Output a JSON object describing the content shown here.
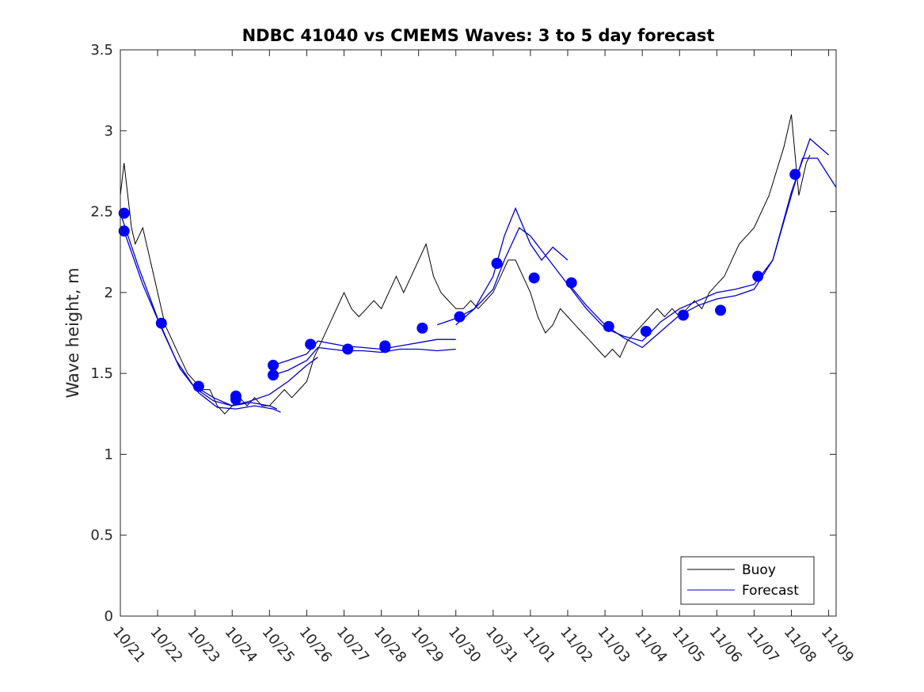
{
  "chart_data": {
    "type": "line",
    "title": "NDBC 41040 vs CMEMS Waves: 3 to 5 day forecast",
    "xlabel": "",
    "ylabel": "Wave height, m",
    "x_tick_labels": [
      "10/21",
      "10/22",
      "10/23",
      "10/24",
      "10/25",
      "10/26",
      "10/27",
      "10/28",
      "10/29",
      "10/30",
      "10/31",
      "11/01",
      "11/02",
      "11/03",
      "11/04",
      "11/05",
      "11/06",
      "11/07",
      "11/08",
      "11/09"
    ],
    "xlim_days": [
      0,
      19.2
    ],
    "ylim": [
      0,
      3.5
    ],
    "y_ticks": [
      0,
      0.5,
      1,
      1.5,
      2,
      2.5,
      3,
      3.5
    ],
    "y_tick_labels": [
      "0",
      "0.5",
      "1",
      "1.5",
      "2",
      "2.5",
      "3",
      "3.5"
    ],
    "legend": {
      "position": "bottom-right",
      "entries": [
        {
          "label": "Buoy",
          "color": "#000000"
        },
        {
          "label": "Forecast",
          "color": "#0000cc"
        }
      ]
    },
    "series": [
      {
        "name": "Buoy",
        "color": "#000000",
        "x_days": [
          0.0,
          0.1,
          0.2,
          0.3,
          0.4,
          0.6,
          0.8,
          1.0,
          1.2,
          1.4,
          1.6,
          1.8,
          2.0,
          2.2,
          2.4,
          2.6,
          2.8,
          3.0,
          3.2,
          3.4,
          3.6,
          3.8,
          4.0,
          4.2,
          4.4,
          4.6,
          4.8,
          5.0,
          5.2,
          5.4,
          5.6,
          5.8,
          6.0,
          6.2,
          6.4,
          6.6,
          6.8,
          7.0,
          7.2,
          7.4,
          7.6,
          7.8,
          8.0,
          8.2,
          8.4,
          8.6,
          8.8,
          9.0,
          9.2,
          9.4,
          9.6,
          9.8,
          10.0,
          10.2,
          10.4,
          10.6,
          10.8,
          11.0,
          11.2,
          11.4,
          11.6,
          11.8,
          12.0,
          12.2,
          12.4,
          12.6,
          12.8,
          13.0,
          13.2,
          13.4,
          13.6,
          13.8,
          14.0,
          14.2,
          14.4,
          14.6,
          14.8,
          15.0,
          15.2,
          15.4,
          15.6,
          15.8,
          16.0,
          16.2,
          16.4,
          16.6,
          16.8,
          17.0,
          17.2,
          17.4,
          17.6,
          17.8,
          18.0,
          18.2,
          18.4,
          18.5
        ],
        "values": [
          2.6,
          2.8,
          2.6,
          2.4,
          2.3,
          2.4,
          2.2,
          2.0,
          1.8,
          1.7,
          1.6,
          1.5,
          1.45,
          1.4,
          1.4,
          1.3,
          1.25,
          1.3,
          1.35,
          1.3,
          1.35,
          1.3,
          1.3,
          1.35,
          1.4,
          1.35,
          1.4,
          1.45,
          1.6,
          1.7,
          1.8,
          1.9,
          2.0,
          1.9,
          1.85,
          1.9,
          1.95,
          1.9,
          2.0,
          2.1,
          2.0,
          2.1,
          2.2,
          2.3,
          2.1,
          2.0,
          1.95,
          1.9,
          1.9,
          1.95,
          1.9,
          1.95,
          2.0,
          2.1,
          2.2,
          2.2,
          2.1,
          2.0,
          1.85,
          1.75,
          1.8,
          1.9,
          1.85,
          1.8,
          1.75,
          1.7,
          1.65,
          1.6,
          1.65,
          1.6,
          1.7,
          1.75,
          1.8,
          1.85,
          1.9,
          1.85,
          1.9,
          1.85,
          1.9,
          1.95,
          1.9,
          2.0,
          2.05,
          2.1,
          2.2,
          2.3,
          2.35,
          2.4,
          2.5,
          2.6,
          2.75,
          2.9,
          3.1,
          2.6,
          2.8,
          2.85
        ]
      },
      {
        "name": "Forecast",
        "color": "#0000cc",
        "segments": [
          {
            "x_days": [
              0.0,
              0.5,
              1.0,
              1.5,
              2.0,
              2.5,
              3.0,
              3.5,
              4.0,
              4.2
            ],
            "values": [
              2.49,
              2.15,
              1.84,
              1.58,
              1.41,
              1.33,
              1.3,
              1.32,
              1.3,
              1.28
            ]
          },
          {
            "x_days": [
              0.1,
              0.6,
              1.1,
              1.6,
              2.1,
              2.6,
              3.1,
              3.6,
              4.1,
              4.3
            ],
            "values": [
              2.38,
              2.05,
              1.78,
              1.53,
              1.38,
              1.29,
              1.28,
              1.3,
              1.28,
              1.26
            ]
          },
          {
            "x_days": [
              2.0,
              2.5,
              3.0,
              3.5,
              4.0,
              4.5,
              5.0,
              5.3
            ],
            "values": [
              1.42,
              1.35,
              1.3,
              1.33,
              1.37,
              1.45,
              1.55,
              1.6
            ]
          },
          {
            "x_days": [
              4.1,
              4.5,
              5.0,
              5.3,
              6.0,
              6.5,
              7.0,
              7.5,
              8.0,
              8.5,
              9.0
            ],
            "values": [
              1.55,
              1.58,
              1.62,
              1.7,
              1.67,
              1.66,
              1.65,
              1.67,
              1.69,
              1.71,
              1.71
            ]
          },
          {
            "x_days": [
              4.1,
              4.5,
              5.0,
              5.3,
              6.0,
              6.5,
              7.0,
              7.5,
              8.0,
              8.5,
              9.0
            ],
            "values": [
              1.49,
              1.52,
              1.58,
              1.66,
              1.64,
              1.64,
              1.63,
              1.65,
              1.65,
              1.64,
              1.65
            ]
          },
          {
            "x_days": [
              9.0,
              9.5,
              10.0,
              10.3,
              10.6,
              11.0,
              11.3,
              11.6,
              12.0
            ],
            "values": [
              1.8,
              1.9,
              2.1,
              2.35,
              2.52,
              2.3,
              2.2,
              2.28,
              2.2
            ]
          },
          {
            "x_days": [
              8.5,
              9.0,
              9.5,
              10.0,
              10.3,
              10.7,
              11.0,
              11.5,
              12.0,
              12.5,
              13.0,
              13.5,
              14.0,
              14.5,
              15.0,
              15.5,
              16.0,
              16.5,
              17.0,
              17.5,
              18.0,
              18.3,
              18.7,
              19.2
            ],
            "values": [
              1.8,
              1.84,
              1.9,
              2.02,
              2.2,
              2.4,
              2.35,
              2.2,
              2.05,
              1.9,
              1.78,
              1.73,
              1.7,
              1.82,
              1.9,
              1.95,
              2.0,
              2.02,
              2.05,
              2.2,
              2.6,
              2.83,
              2.83,
              2.65
            ]
          },
          {
            "x_days": [
              12.0,
              12.5,
              13.0,
              13.5,
              14.0,
              14.5,
              15.0,
              15.5,
              16.0,
              16.5,
              17.0,
              17.5,
              18.0,
              18.5,
              19.0
            ],
            "values": [
              2.06,
              1.92,
              1.8,
              1.72,
              1.66,
              1.76,
              1.86,
              1.92,
              1.96,
              1.98,
              2.02,
              2.2,
              2.62,
              2.95,
              2.85
            ]
          }
        ],
        "markers": {
          "x_days": [
            0.1,
            0.1,
            1.1,
            2.1,
            3.1,
            3.1,
            4.1,
            4.1,
            5.1,
            6.1,
            7.1,
            7.1,
            8.1,
            9.1,
            10.1,
            11.1,
            12.1,
            13.1,
            14.1,
            15.1,
            16.1,
            17.1,
            18.1
          ],
          "values": [
            2.49,
            2.38,
            1.81,
            1.42,
            1.36,
            1.34,
            1.55,
            1.49,
            1.68,
            1.65,
            1.67,
            1.66,
            1.78,
            1.85,
            2.18,
            2.09,
            2.06,
            1.79,
            1.76,
            1.86,
            1.89,
            2.1,
            2.73
          ]
        }
      }
    ]
  }
}
